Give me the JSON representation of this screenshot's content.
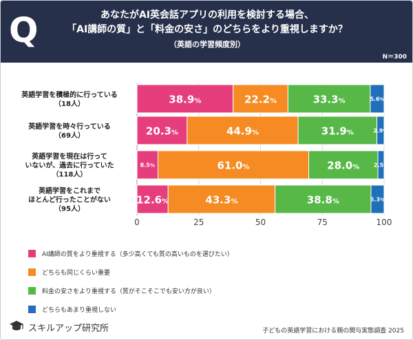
{
  "header": {
    "q_mark": "Q",
    "title_line1": "あなたがAI英会話アプリの利用を検討する場合、",
    "title_line2": "「AI講師の質」と「料金の安さ」のどちらをより重視しますか？",
    "subtitle": "（英語の学習頻度別）",
    "n_label": "N＝300"
  },
  "footer": {
    "logo_text": "スキルアップ研究所",
    "source": "子どもの英語学習における親の関与実態調査 2025"
  },
  "colors": {
    "header_bg": "#26304b",
    "series": [
      "#e63e7d",
      "#f58b22",
      "#57b847",
      "#1f6fba"
    ]
  },
  "chart_data": {
    "type": "bar",
    "orientation": "horizontal",
    "stacked": true,
    "categories": [
      [
        "英語学習を積極的に行っている",
        "（18人）"
      ],
      [
        "英語学習を時々行っている",
        "（69人）"
      ],
      [
        "英語学習を現在は行って",
        "いないが、過去に行っていた",
        "（118人）"
      ],
      [
        "英語学習をこれまで",
        "ほとんど行ったことがない",
        "（95人）"
      ]
    ],
    "series": [
      {
        "name": "AI講師の質をより重視する（多少高くても質の高いものを選びたい）",
        "values": [
          38.9,
          20.3,
          8.5,
          12.6
        ]
      },
      {
        "name": "どちらも同じくらい重要",
        "values": [
          22.2,
          44.9,
          61.0,
          43.3
        ]
      },
      {
        "name": "料金の安さをより重視する（質がそこそこでも安い方が良い）",
        "values": [
          33.3,
          31.9,
          28.0,
          38.8
        ]
      },
      {
        "name": "どちらもあまり重視しない",
        "values": [
          5.6,
          2.9,
          2.5,
          5.3
        ]
      }
    ],
    "xlim": [
      0,
      100
    ],
    "xticks": [
      "0",
      "25",
      "50",
      "75",
      "100"
    ],
    "value_suffix": "%",
    "grid": true,
    "legend_position": "bottom-left"
  }
}
